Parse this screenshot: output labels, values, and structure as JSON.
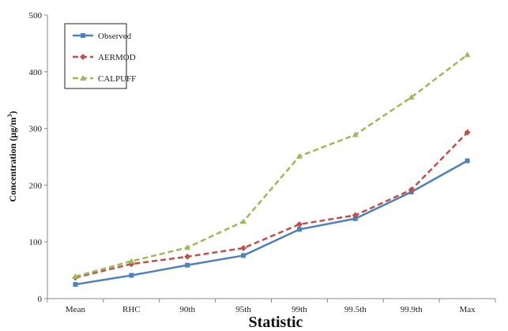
{
  "chart_data": {
    "type": "line",
    "title": "",
    "xlabel": "Statistic",
    "ylabel": "Concentration (μg/m",
    "ylabel_superscript": "3",
    "ylabel_suffix": ")",
    "ylim": [
      0,
      500
    ],
    "yticks": [
      0,
      100,
      200,
      300,
      400,
      500
    ],
    "categories": [
      "Mean",
      "RHC",
      "90th",
      "95th",
      "99th",
      "99.5th",
      "99.9th",
      "Max"
    ],
    "grid": false,
    "legend_position": "top-left",
    "series": [
      {
        "name": "Observed",
        "color": "#4f81bd",
        "style": "solid",
        "marker": "square",
        "values": [
          25,
          41,
          59,
          76,
          122,
          141,
          188,
          243
        ]
      },
      {
        "name": "AERMOD",
        "color": "#c0504d",
        "style": "dashed",
        "marker": "diamond",
        "values": [
          37,
          61,
          74,
          89,
          131,
          147,
          192,
          293
        ]
      },
      {
        "name": "CALPUFF",
        "color": "#9bbb59",
        "style": "dashed",
        "marker": "triangle",
        "values": [
          39,
          66,
          90,
          136,
          251,
          289,
          355,
          430
        ]
      }
    ]
  }
}
